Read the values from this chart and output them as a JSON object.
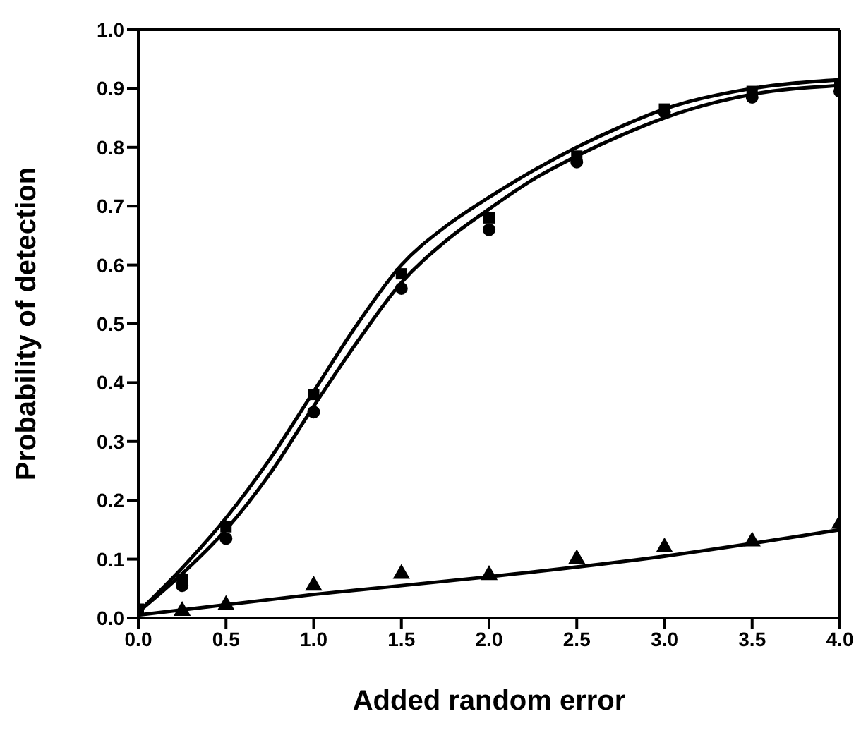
{
  "chart_data": {
    "type": "scatter",
    "xlabel": "Added random error",
    "ylabel": "Probability of detection",
    "xlim": [
      0,
      4
    ],
    "ylim": [
      0,
      1
    ],
    "xticks": [
      {
        "value": 0,
        "label": "0.0"
      },
      {
        "value": 0.5,
        "label": "0.5"
      },
      {
        "value": 1,
        "label": "1.0"
      },
      {
        "value": 1.5,
        "label": "1.5"
      },
      {
        "value": 2,
        "label": "2.0"
      },
      {
        "value": 2.5,
        "label": "2.5"
      },
      {
        "value": 3,
        "label": "3.0"
      },
      {
        "value": 3.5,
        "label": "3.5"
      },
      {
        "value": 4,
        "label": "4.0"
      }
    ],
    "yticks": [
      {
        "value": 0,
        "label": "0.0"
      },
      {
        "value": 0.1,
        "label": "0.1"
      },
      {
        "value": 0.2,
        "label": "0.2"
      },
      {
        "value": 0.3,
        "label": "0.3"
      },
      {
        "value": 0.4,
        "label": "0.4"
      },
      {
        "value": 0.5,
        "label": "0.5"
      },
      {
        "value": 0.6,
        "label": "0.6"
      },
      {
        "value": 0.7,
        "label": "0.7"
      },
      {
        "value": 0.8,
        "label": "0.8"
      },
      {
        "value": 0.9,
        "label": "0.9"
      },
      {
        "value": 1,
        "label": "1.0"
      }
    ],
    "grid": false,
    "series": [
      {
        "marker": "square",
        "color": "#000000",
        "x": [
          0,
          0.25,
          0.5,
          1,
          1.5,
          2,
          2.5,
          3,
          3.5,
          4
        ],
        "values": [
          0.015,
          0.065,
          0.155,
          0.38,
          0.585,
          0.68,
          0.785,
          0.865,
          0.895,
          0.905
        ]
      },
      {
        "marker": "circle",
        "color": "#000000",
        "x": [
          0.25,
          0.5,
          1,
          1.5,
          2,
          2.5,
          3,
          3.5,
          4
        ],
        "values": [
          0.055,
          0.135,
          0.35,
          0.56,
          0.66,
          0.775,
          0.86,
          0.885,
          0.895
        ]
      },
      {
        "marker": "triangle",
        "color": "#000000",
        "x": [
          0.25,
          0.5,
          1,
          1.5,
          2,
          2.5,
          3,
          3.5,
          4
        ],
        "values": [
          0.012,
          0.022,
          0.055,
          0.075,
          0.073,
          0.1,
          0.12,
          0.13,
          0.16
        ]
      },
      {
        "type": "line",
        "marker": "none",
        "line_style": "solid",
        "color": "#000000",
        "x": [
          0,
          0.25,
          0.5,
          0.75,
          1,
          1.25,
          1.5,
          1.75,
          2,
          2.25,
          2.5,
          2.75,
          3,
          3.5,
          4
        ],
        "values": [
          0.01,
          0.085,
          0.17,
          0.27,
          0.385,
          0.5,
          0.6,
          0.665,
          0.715,
          0.76,
          0.8,
          0.835,
          0.865,
          0.9,
          0.915
        ]
      },
      {
        "type": "line",
        "marker": "none",
        "line_style": "solid",
        "color": "#000000",
        "x": [
          0,
          0.25,
          0.5,
          0.75,
          1,
          1.25,
          1.5,
          1.75,
          2,
          2.25,
          2.5,
          2.75,
          3,
          3.5,
          4
        ],
        "values": [
          0.01,
          0.075,
          0.15,
          0.245,
          0.36,
          0.47,
          0.57,
          0.64,
          0.695,
          0.745,
          0.785,
          0.82,
          0.85,
          0.89,
          0.905
        ]
      },
      {
        "type": "line",
        "marker": "none",
        "line_style": "solid",
        "color": "#000000",
        "x": [
          0,
          1,
          2,
          3,
          4
        ],
        "values": [
          0.005,
          0.04,
          0.07,
          0.105,
          0.15
        ]
      }
    ]
  }
}
